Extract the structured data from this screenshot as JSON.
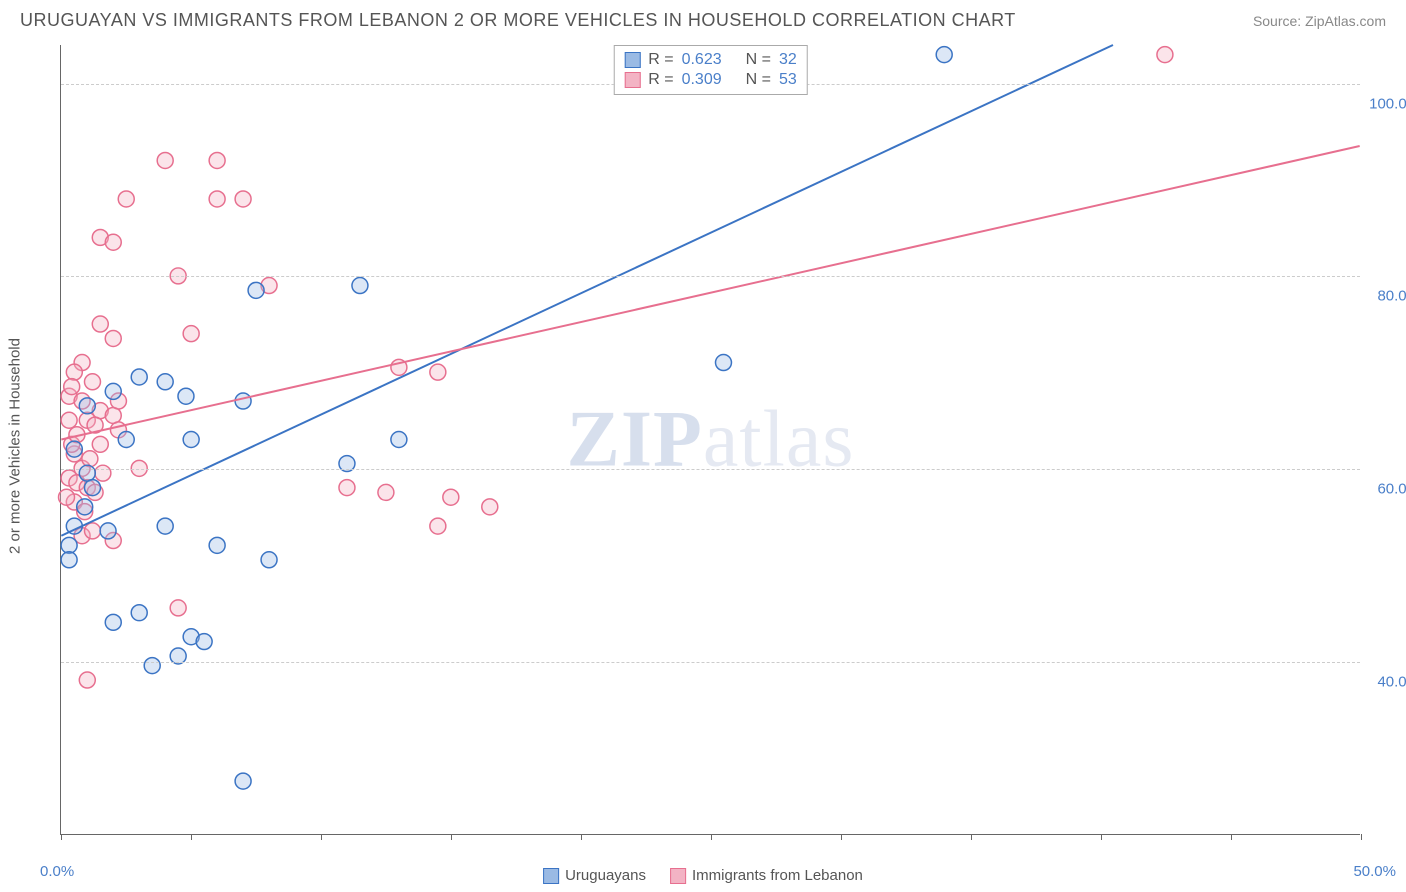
{
  "header": {
    "title": "URUGUAYAN VS IMMIGRANTS FROM LEBANON 2 OR MORE VEHICLES IN HOUSEHOLD CORRELATION CHART",
    "source": "Source: ZipAtlas.com"
  },
  "axes": {
    "y_label": "2 or more Vehicles in Household",
    "y_ticks": [
      40.0,
      60.0,
      80.0,
      100.0
    ],
    "y_tick_labels": [
      "40.0%",
      "60.0%",
      "80.0%",
      "100.0%"
    ],
    "y_min": 22.0,
    "y_max": 104.0,
    "x_ticks_pct": [
      0,
      10,
      20,
      30,
      40,
      50,
      60,
      70,
      80,
      90,
      100
    ],
    "x_axis_label_left": "0.0%",
    "x_axis_label_right": "50.0%",
    "x_min": 0.0,
    "x_max": 50.0
  },
  "styling": {
    "background_color": "#ffffff",
    "grid_color": "#cccccc",
    "axis_color": "#666666",
    "tick_label_color": "#4a7fc9",
    "text_color": "#555555",
    "marker_radius": 8,
    "marker_stroke_width": 1.5,
    "marker_fill_opacity": 0.35,
    "line_width": 2
  },
  "series": {
    "uruguayans": {
      "label": "Uruguayans",
      "color_stroke": "#3b74c4",
      "color_fill": "#9abae4",
      "R": "0.623",
      "N": "32",
      "line": {
        "x1": 0,
        "y1": 53.0,
        "x2": 40.5,
        "y2": 104.0
      },
      "points": [
        {
          "x": 34.0,
          "y": 103.0
        },
        {
          "x": 7.5,
          "y": 78.5
        },
        {
          "x": 11.5,
          "y": 79.0
        },
        {
          "x": 25.5,
          "y": 71.0
        },
        {
          "x": 3.0,
          "y": 69.5
        },
        {
          "x": 4.0,
          "y": 69.0
        },
        {
          "x": 4.8,
          "y": 67.5
        },
        {
          "x": 7.0,
          "y": 67.0
        },
        {
          "x": 2.5,
          "y": 63.0
        },
        {
          "x": 5.0,
          "y": 63.0
        },
        {
          "x": 13.0,
          "y": 63.0
        },
        {
          "x": 11.0,
          "y": 60.5
        },
        {
          "x": 1.0,
          "y": 59.5
        },
        {
          "x": 1.2,
          "y": 58.0
        },
        {
          "x": 0.9,
          "y": 56.0
        },
        {
          "x": 0.5,
          "y": 54.0
        },
        {
          "x": 4.0,
          "y": 54.0
        },
        {
          "x": 6.0,
          "y": 52.0
        },
        {
          "x": 0.3,
          "y": 52.0
        },
        {
          "x": 0.3,
          "y": 50.5
        },
        {
          "x": 8.0,
          "y": 50.5
        },
        {
          "x": 3.0,
          "y": 45.0
        },
        {
          "x": 2.0,
          "y": 44.0
        },
        {
          "x": 5.0,
          "y": 42.5
        },
        {
          "x": 5.5,
          "y": 42.0
        },
        {
          "x": 4.5,
          "y": 40.5
        },
        {
          "x": 3.5,
          "y": 39.5
        },
        {
          "x": 7.0,
          "y": 27.5
        },
        {
          "x": 1.0,
          "y": 66.5
        },
        {
          "x": 2.0,
          "y": 68.0
        },
        {
          "x": 0.5,
          "y": 62.0
        },
        {
          "x": 1.8,
          "y": 53.5
        }
      ]
    },
    "lebanon": {
      "label": "Immigrants from Lebanon",
      "color_stroke": "#e76f8f",
      "color_fill": "#f3b3c4",
      "R": "0.309",
      "N": "53",
      "line": {
        "x1": 0,
        "y1": 63.0,
        "x2": 50.0,
        "y2": 93.5
      },
      "points": [
        {
          "x": 42.5,
          "y": 103.0
        },
        {
          "x": 4.0,
          "y": 92.0
        },
        {
          "x": 6.0,
          "y": 92.0
        },
        {
          "x": 2.5,
          "y": 88.0
        },
        {
          "x": 6.0,
          "y": 88.0
        },
        {
          "x": 7.0,
          "y": 88.0
        },
        {
          "x": 1.5,
          "y": 84.0
        },
        {
          "x": 2.0,
          "y": 83.5
        },
        {
          "x": 4.5,
          "y": 80.0
        },
        {
          "x": 8.0,
          "y": 79.0
        },
        {
          "x": 1.5,
          "y": 75.0
        },
        {
          "x": 2.0,
          "y": 73.5
        },
        {
          "x": 5.0,
          "y": 74.0
        },
        {
          "x": 0.8,
          "y": 71.0
        },
        {
          "x": 0.5,
          "y": 70.0
        },
        {
          "x": 13.0,
          "y": 70.5
        },
        {
          "x": 14.5,
          "y": 70.0
        },
        {
          "x": 0.3,
          "y": 67.5
        },
        {
          "x": 0.8,
          "y": 67.0
        },
        {
          "x": 1.5,
          "y": 66.0
        },
        {
          "x": 0.3,
          "y": 65.0
        },
        {
          "x": 1.0,
          "y": 65.0
        },
        {
          "x": 1.3,
          "y": 64.5
        },
        {
          "x": 2.0,
          "y": 65.5
        },
        {
          "x": 2.2,
          "y": 64.0
        },
        {
          "x": 1.5,
          "y": 62.5
        },
        {
          "x": 0.5,
          "y": 61.5
        },
        {
          "x": 0.8,
          "y": 60.0
        },
        {
          "x": 3.0,
          "y": 60.0
        },
        {
          "x": 0.3,
          "y": 59.0
        },
        {
          "x": 0.6,
          "y": 58.5
        },
        {
          "x": 1.0,
          "y": 58.0
        },
        {
          "x": 1.3,
          "y": 57.5
        },
        {
          "x": 0.5,
          "y": 56.5
        },
        {
          "x": 11.0,
          "y": 58.0
        },
        {
          "x": 12.5,
          "y": 57.5
        },
        {
          "x": 15.0,
          "y": 57.0
        },
        {
          "x": 16.5,
          "y": 56.0
        },
        {
          "x": 14.5,
          "y": 54.0
        },
        {
          "x": 0.8,
          "y": 53.0
        },
        {
          "x": 1.2,
          "y": 53.5
        },
        {
          "x": 2.0,
          "y": 52.5
        },
        {
          "x": 4.5,
          "y": 45.5
        },
        {
          "x": 1.0,
          "y": 38.0
        },
        {
          "x": 0.4,
          "y": 62.5
        },
        {
          "x": 0.6,
          "y": 63.5
        },
        {
          "x": 1.1,
          "y": 61.0
        },
        {
          "x": 1.6,
          "y": 59.5
        },
        {
          "x": 0.2,
          "y": 57.0
        },
        {
          "x": 0.9,
          "y": 55.5
        },
        {
          "x": 0.4,
          "y": 68.5
        },
        {
          "x": 1.2,
          "y": 69.0
        },
        {
          "x": 2.2,
          "y": 67.0
        }
      ]
    }
  },
  "watermark": {
    "zip": "ZIP",
    "atlas": "atlas"
  },
  "legend_top": {
    "R_label": "R =",
    "N_label": "N ="
  }
}
